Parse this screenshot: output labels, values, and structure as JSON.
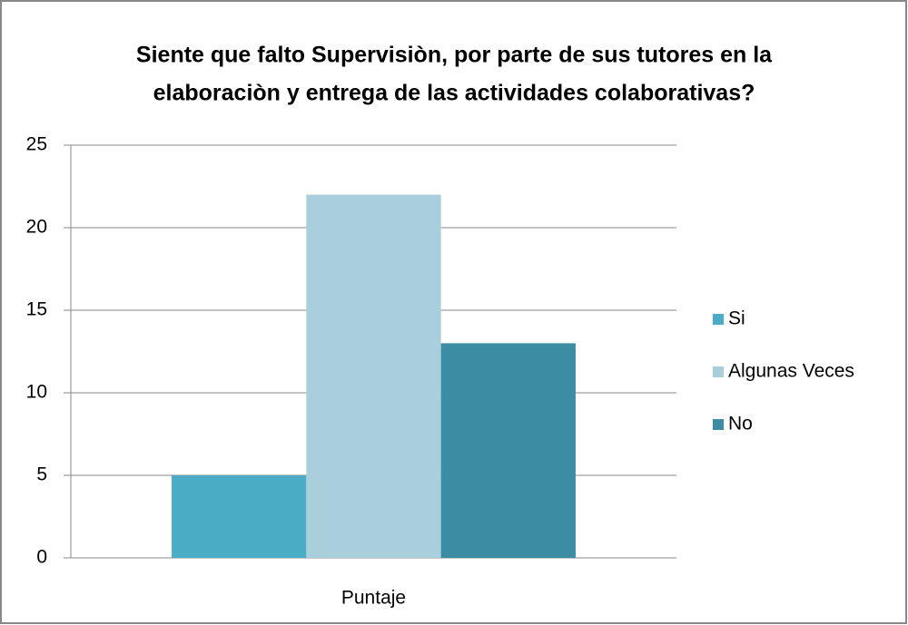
{
  "chart_data": {
    "type": "bar",
    "title": [
      "Siente que falto Supervisiòn, por parte de sus tutores en la",
      "elaboraciòn y entrega de las actividades colaborativas?"
    ],
    "categories": [
      "Puntaje"
    ],
    "series": [
      {
        "name": "Si",
        "color": "#4bacc6",
        "values": [
          5
        ]
      },
      {
        "name": "Algunas Veces",
        "color": "#a9cfdc",
        "values": [
          22
        ]
      },
      {
        "name": "No",
        "color": "#3c8da3",
        "values": [
          13
        ]
      }
    ],
    "ylim": [
      0,
      25
    ],
    "yticks": [
      0,
      5,
      10,
      15,
      20,
      25
    ],
    "grid": true,
    "legend": "right"
  }
}
